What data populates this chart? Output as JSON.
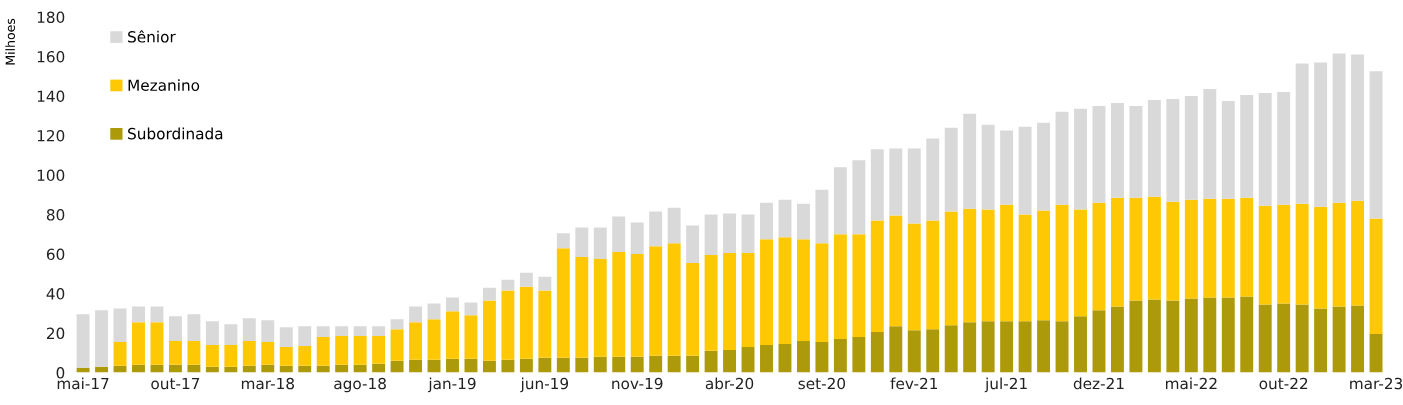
{
  "chart_data": {
    "type": "bar",
    "stacked": true,
    "ylabel": "Milhoes",
    "legend": "top left",
    "grid": false,
    "categories": [
      "mai-17",
      null,
      null,
      null,
      null,
      "out-17",
      null,
      null,
      null,
      null,
      "mar-18",
      null,
      null,
      null,
      null,
      "ago-18",
      null,
      null,
      null,
      null,
      "jan-19",
      null,
      null,
      null,
      null,
      "jun-19",
      null,
      null,
      null,
      null,
      "nov-19",
      null,
      null,
      null,
      null,
      "abr-20",
      null,
      null,
      null,
      null,
      "set-20",
      null,
      null,
      null,
      null,
      "fev-21",
      null,
      null,
      null,
      null,
      "jul-21",
      null,
      null,
      null,
      null,
      "dez-21",
      null,
      null,
      null,
      null,
      "mai-22",
      null,
      null,
      null,
      null,
      "out-22",
      null,
      null,
      null,
      null,
      "mar-23"
    ],
    "ylim": [
      0,
      180
    ],
    "yticks": [
      0,
      20,
      40,
      60,
      80,
      100,
      120,
      140,
      160,
      180
    ],
    "series": [
      {
        "name": "Subordinada",
        "color": "#ad9a0b",
        "values": [
          2.5,
          3,
          3.5,
          4,
          4,
          4,
          4,
          3,
          3,
          3.5,
          4,
          3.5,
          3.5,
          3.5,
          4,
          4,
          4.5,
          6,
          6.5,
          6.5,
          7,
          7,
          6,
          6.5,
          7,
          7.5,
          7.5,
          7.5,
          8,
          8,
          8,
          8.5,
          8.5,
          8.5,
          11,
          11.5,
          13,
          14,
          14.5,
          16,
          15.5,
          17,
          18,
          20.5,
          23.5,
          21.5,
          22,
          24,
          25.5,
          26,
          26,
          26,
          26.5,
          26,
          28.5,
          31.5,
          33.5,
          36.5,
          37,
          36.5,
          37.5,
          38,
          38,
          38.5,
          34.5,
          35,
          34.5,
          32.5,
          33.5,
          34,
          19.5
        ]
      },
      {
        "name": "Mezanino",
        "color": "#ffc805",
        "values": [
          0,
          0,
          12,
          21.5,
          21.5,
          12,
          12,
          11,
          11,
          12.5,
          11.5,
          9.5,
          10,
          14.5,
          14.5,
          14.5,
          14,
          16,
          19,
          20.5,
          24,
          22,
          30.5,
          35,
          36.5,
          34,
          55.5,
          51,
          49.5,
          53,
          52,
          55.5,
          57,
          47,
          48.5,
          49,
          47.5,
          53.5,
          54,
          51.5,
          50,
          53,
          52,
          56.5,
          56,
          54,
          55,
          57.5,
          57.5,
          56.5,
          59,
          54,
          55.5,
          59,
          54,
          54.5,
          55,
          52,
          52,
          50,
          50,
          50,
          50,
          50,
          50,
          50,
          51,
          51.5,
          52.5,
          53,
          58.5
        ]
      },
      {
        "name": "Sênior",
        "color": "#d9d9d9",
        "values": [
          27,
          28.5,
          17,
          8,
          8,
          12.5,
          13.5,
          12,
          10.5,
          11.5,
          11,
          10,
          10,
          5.5,
          5,
          5,
          5,
          5,
          8,
          8,
          7,
          6.5,
          6.5,
          5.5,
          7,
          7,
          7.5,
          15,
          16,
          18,
          16,
          17.5,
          18,
          19,
          20.5,
          20,
          19.5,
          18.5,
          19,
          18,
          27,
          34,
          37.5,
          36,
          34,
          38,
          41.5,
          42.5,
          48,
          43,
          37.5,
          44.5,
          44.5,
          47,
          51,
          49,
          48,
          46.5,
          49,
          52,
          52.5,
          55.5,
          49.5,
          52,
          57,
          57,
          71,
          73,
          75.5,
          74,
          74.5
        ]
      }
    ]
  }
}
